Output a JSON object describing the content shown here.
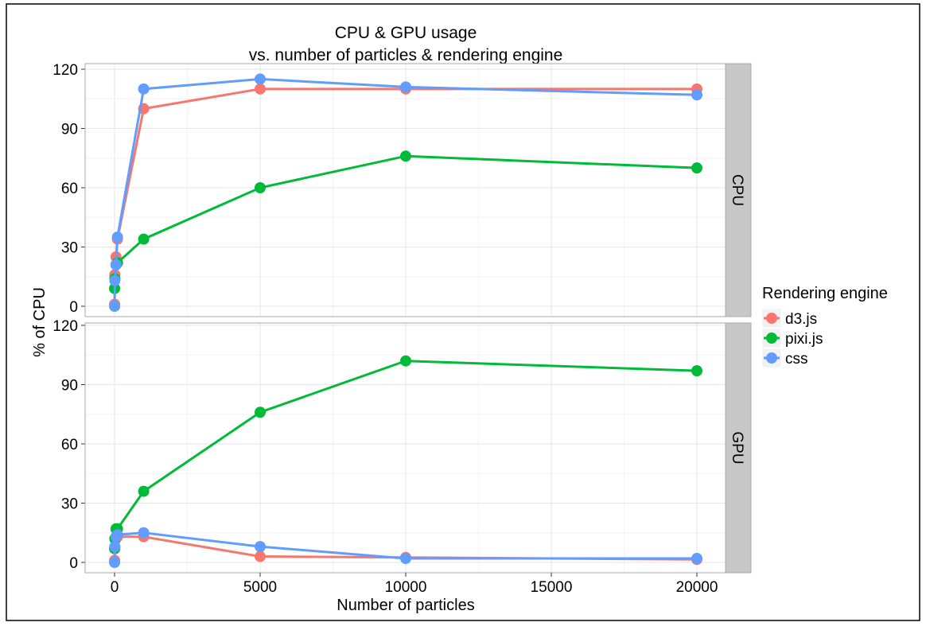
{
  "chart_data": {
    "type": "line",
    "title": "CPU & GPU usage",
    "subtitle": "vs. number of particles & rendering engine",
    "xlabel": "Number of particles",
    "ylabel": "% of CPU",
    "xlim": [
      -1000,
      21000
    ],
    "ylim": [
      -3,
      122
    ],
    "x_ticks": [
      0,
      5000,
      10000,
      15000,
      20000
    ],
    "y_ticks": [
      0,
      30,
      60,
      90,
      120
    ],
    "grid": true,
    "legend": {
      "title": "Rendering engine",
      "placement": "right"
    },
    "x": [
      1,
      10,
      50,
      100,
      1000,
      5000,
      10000,
      20000
    ],
    "panels": [
      {
        "label": "CPU",
        "series": [
          {
            "name": "d3.js",
            "color": "#F8766D",
            "values": [
              1,
              16,
              25,
              34,
              100,
              110,
              110,
              110
            ]
          },
          {
            "name": "pixi.js",
            "color": "#00BA38",
            "values": [
              9,
              14,
              21,
              22,
              34,
              60,
              76,
              70
            ]
          },
          {
            "name": "css",
            "color": "#619CFF",
            "values": [
              0,
              13,
              21,
              35,
              110,
              115,
              111,
              107
            ]
          }
        ]
      },
      {
        "label": "GPU",
        "series": [
          {
            "name": "d3.js",
            "color": "#F8766D",
            "values": [
              1,
              7,
              12,
              13,
              13,
              3,
              2.5,
              1.5
            ]
          },
          {
            "name": "pixi.js",
            "color": "#00BA38",
            "values": [
              7,
              12,
              17,
              17,
              36,
              76,
              102,
              97
            ]
          },
          {
            "name": "css",
            "color": "#619CFF",
            "values": [
              0,
              8,
              13,
              14,
              15,
              8,
              2,
              2
            ]
          }
        ]
      }
    ]
  }
}
